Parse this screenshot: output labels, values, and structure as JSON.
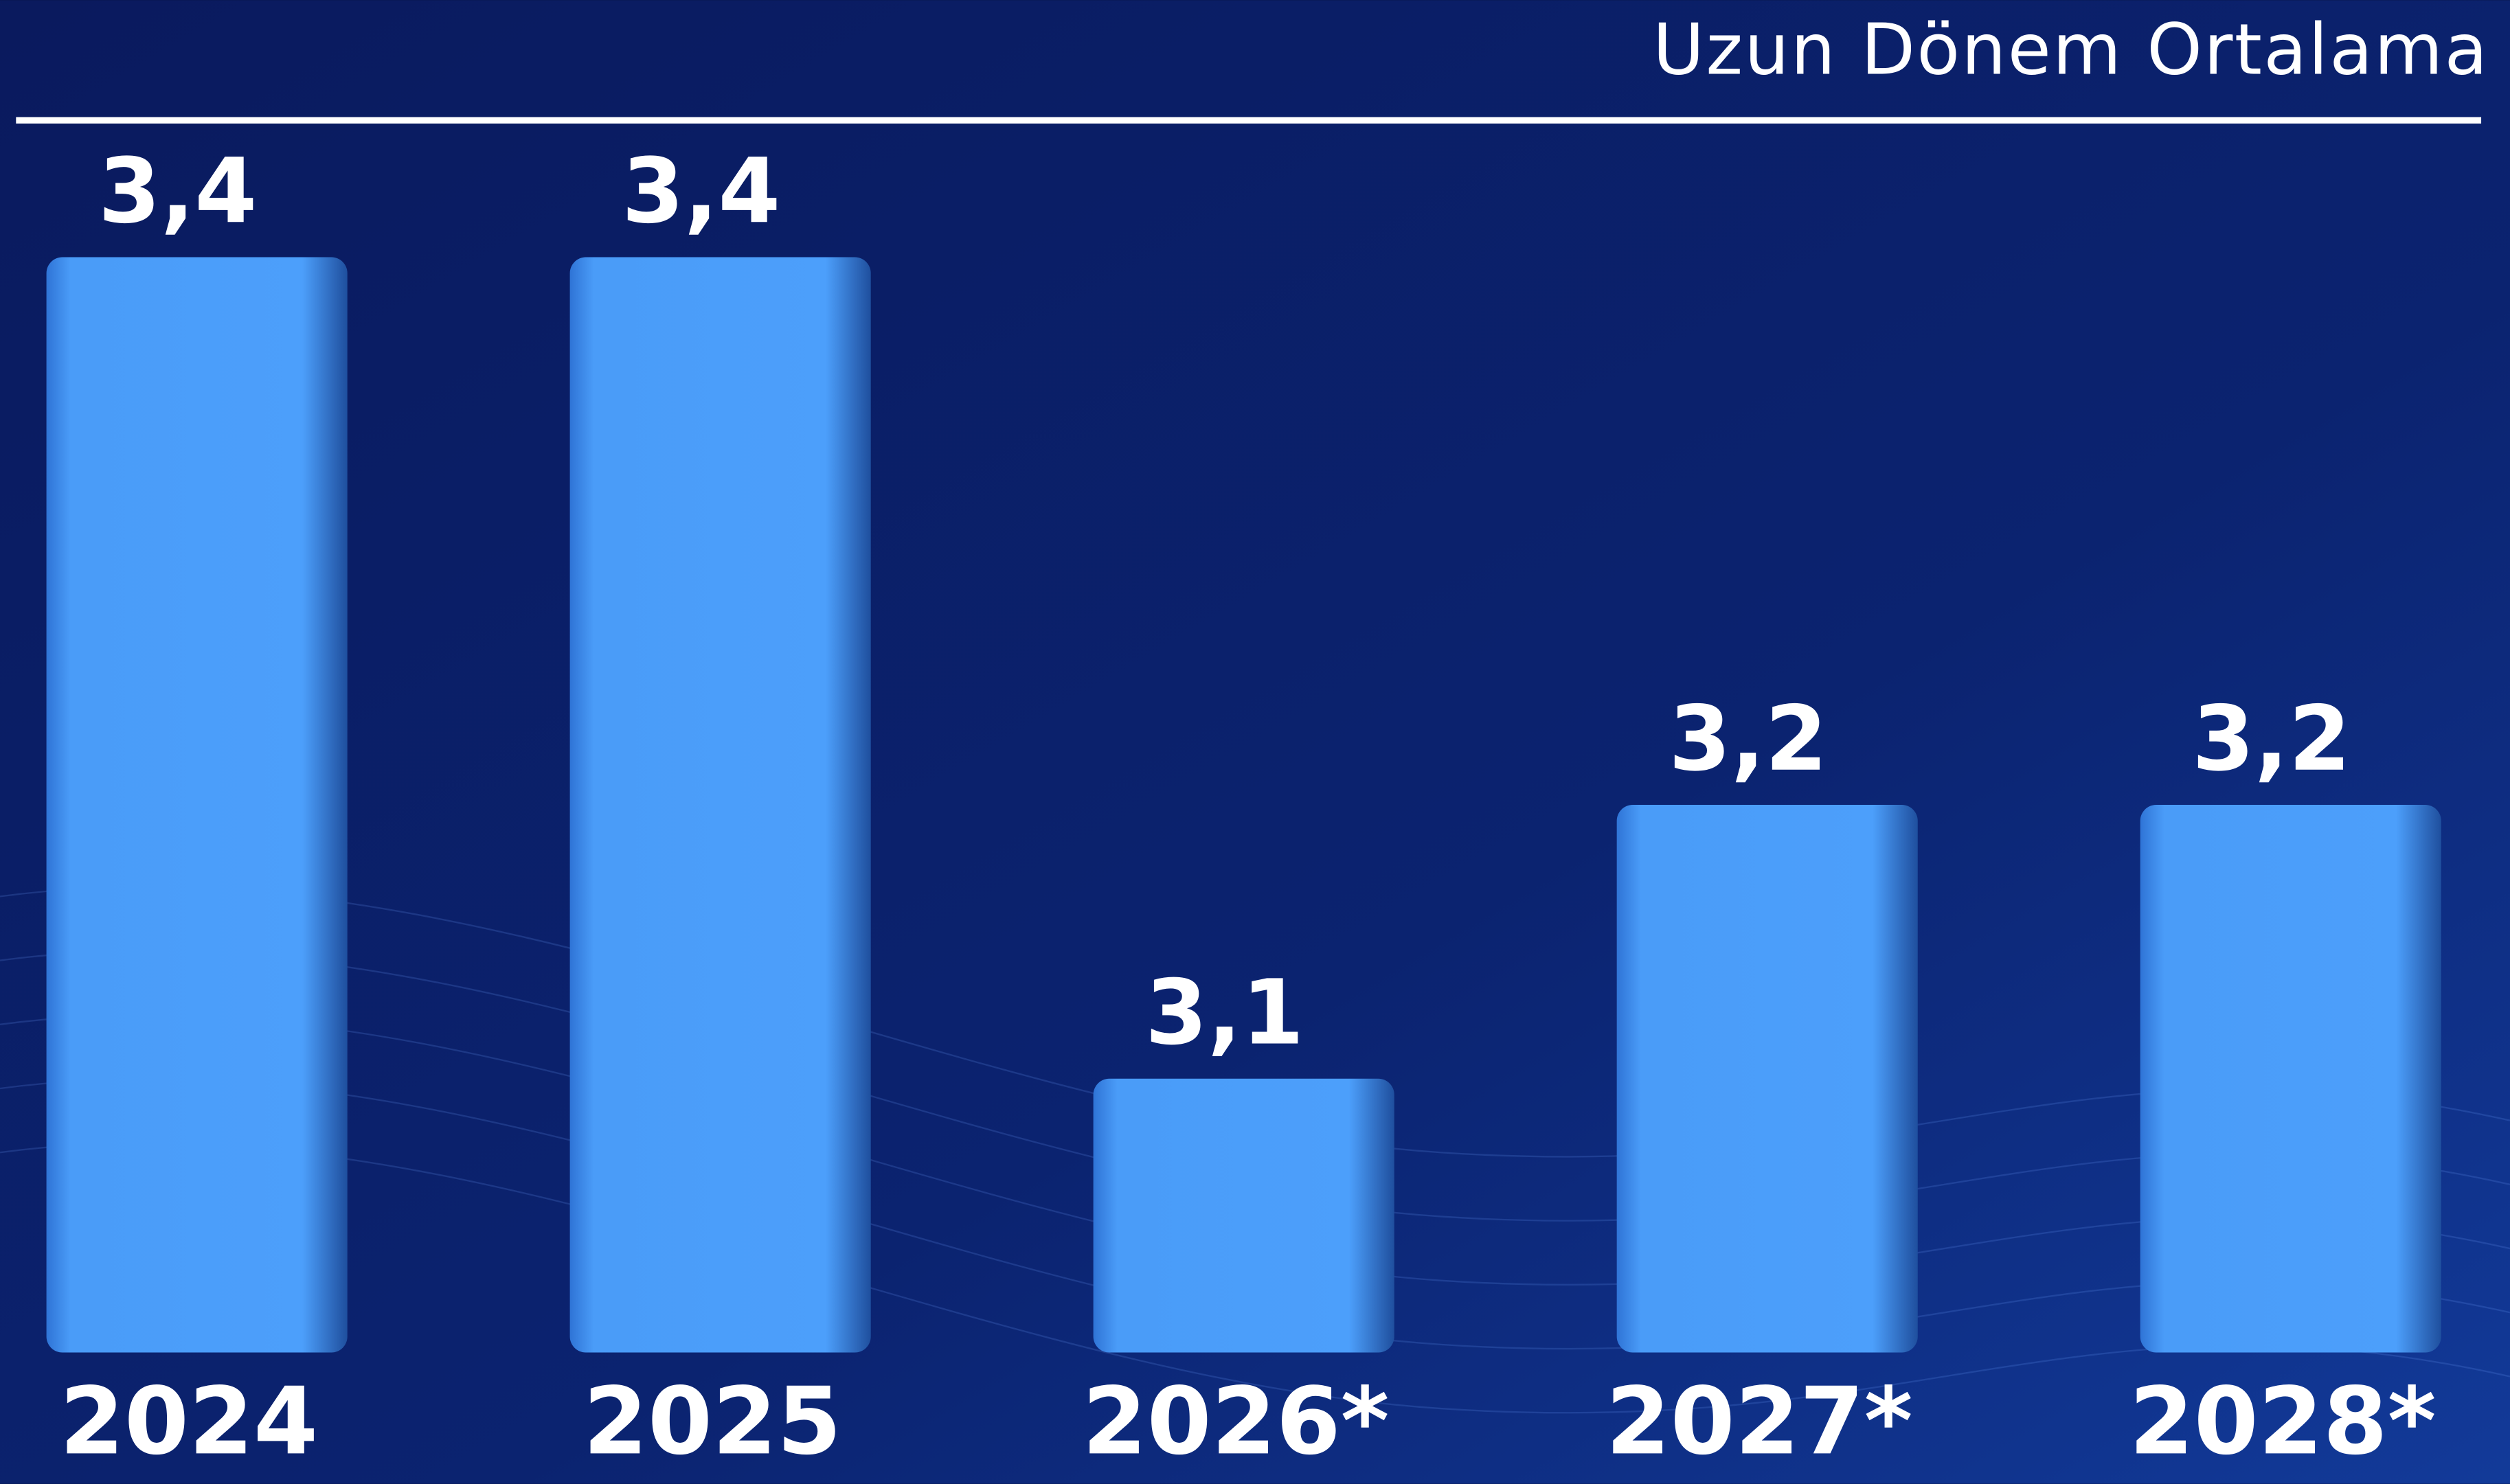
{
  "chart_data": {
    "type": "bar",
    "annotation": "Uzun Dönem Ortalama",
    "categories": [
      "2024",
      "2025",
      "2026*",
      "2027*",
      "2028*"
    ],
    "values": [
      3.4,
      3.4,
      3.1,
      3.2,
      3.2
    ],
    "value_labels": [
      "3,4",
      "3,4",
      "3,1",
      "3,2",
      "3,2"
    ],
    "color": "#4a9cf8",
    "ylim": [
      3.0,
      3.45
    ]
  }
}
